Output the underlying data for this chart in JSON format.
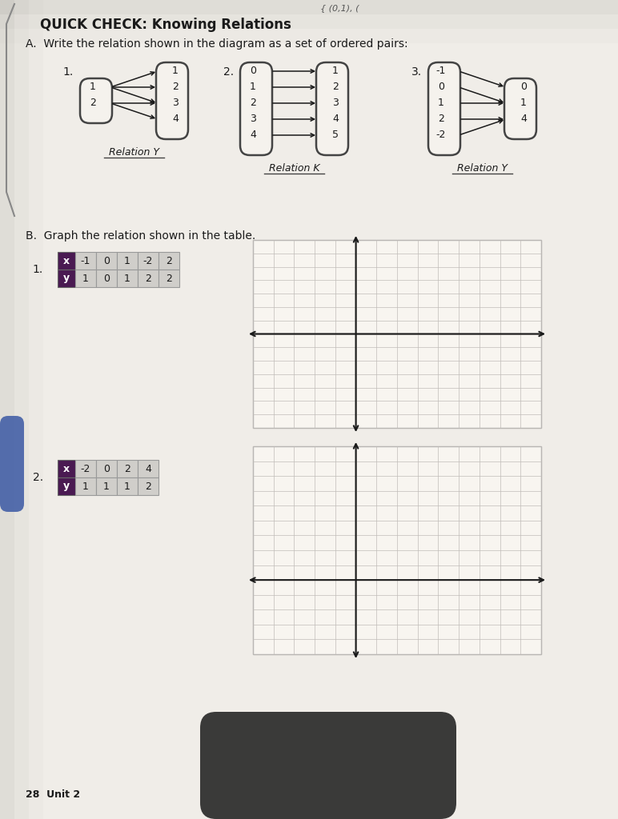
{
  "title": "QUICK CHECK: Knowing Relations",
  "section_a_title": "A.  Write the relation shown in the diagram as a set of ordered pairs:",
  "section_b_title": "B.  Graph the relation shown in the table.",
  "bg_color": "#dedad4",
  "paper_color": "#f0ede8",
  "diagram1": {
    "left_values": [
      "1",
      "2"
    ],
    "right_values": [
      "1",
      "2",
      "3",
      "4"
    ],
    "arrows": [
      [
        "1",
        "1"
      ],
      [
        "1",
        "2"
      ],
      [
        "1",
        "3"
      ],
      [
        "2",
        "3"
      ],
      [
        "2",
        "4"
      ]
    ],
    "label": "Relation Y",
    "number": "1."
  },
  "diagram2": {
    "left_values": [
      "0",
      "1",
      "2",
      "3",
      "4"
    ],
    "right_values": [
      "1",
      "2",
      "3",
      "4",
      "5"
    ],
    "arrows": [
      [
        "0",
        "1"
      ],
      [
        "1",
        "2"
      ],
      [
        "2",
        "3"
      ],
      [
        "3",
        "4"
      ],
      [
        "4",
        "5"
      ]
    ],
    "label": "Relation K",
    "number": "2."
  },
  "diagram3": {
    "left_values": [
      "-1",
      "0",
      "1",
      "2",
      "-2"
    ],
    "right_values": [
      "0",
      "1",
      "4"
    ],
    "arrows": [
      [
        "-1",
        "0"
      ],
      [
        "0",
        "1"
      ],
      [
        "1",
        "1"
      ],
      [
        "2",
        "4"
      ],
      [
        "-2",
        "4"
      ]
    ],
    "label": "Relation Y",
    "number": "3."
  },
  "table1": {
    "number": "1.",
    "x_values": [
      "-1",
      "0",
      "1",
      "-2",
      "2"
    ],
    "y_values": [
      "1",
      "0",
      "1",
      "2",
      "2"
    ]
  },
  "table2": {
    "number": "2.",
    "x_values": [
      "-2",
      "0",
      "2",
      "4"
    ],
    "y_values": [
      "1",
      "1",
      "1",
      "2"
    ]
  },
  "header_color": "#4a1a52",
  "cell_bg_light": "#d0ceca",
  "page_number": "28",
  "unit": "Unit 2",
  "handwritten_note": "{ (0,1), (",
  "arrow_color": "#1a1a1a",
  "grid_color": "#c0bcb8",
  "axis_color": "#1a1a1a",
  "text_color": "#1a1a1a"
}
